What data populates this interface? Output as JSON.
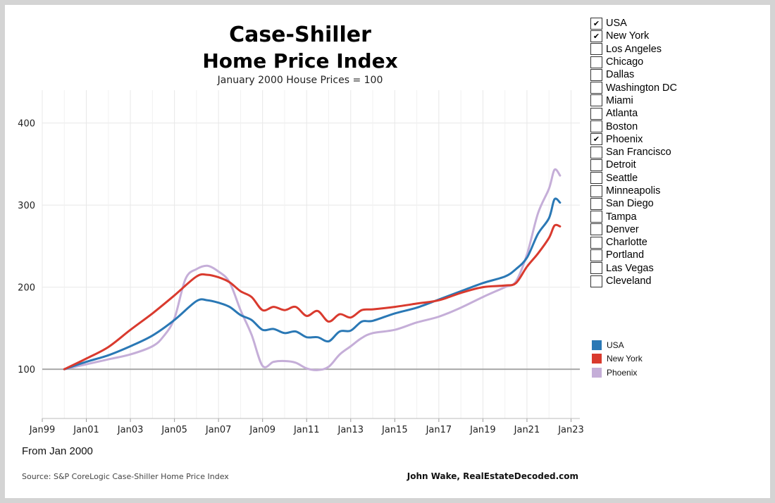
{
  "header": {
    "title_line1": "Case-Shiller",
    "title_line2": "Home Price Index",
    "subtitle": "January 2000 House Prices = 100"
  },
  "filter": {
    "items": [
      {
        "label": "USA",
        "checked": true
      },
      {
        "label": "New York",
        "checked": true
      },
      {
        "label": "Los Angeles",
        "checked": false
      },
      {
        "label": "Chicago",
        "checked": false
      },
      {
        "label": "Dallas",
        "checked": false
      },
      {
        "label": "Washington DC",
        "checked": false
      },
      {
        "label": "Miami",
        "checked": false
      },
      {
        "label": "Atlanta",
        "checked": false
      },
      {
        "label": "Boston",
        "checked": false
      },
      {
        "label": "Phoenix",
        "checked": true
      },
      {
        "label": "San Francisco",
        "checked": false
      },
      {
        "label": "Detroit",
        "checked": false
      },
      {
        "label": "Seattle",
        "checked": false
      },
      {
        "label": "Minneapolis",
        "checked": false
      },
      {
        "label": "San Diego",
        "checked": false
      },
      {
        "label": "Tampa",
        "checked": false
      },
      {
        "label": "Denver",
        "checked": false
      },
      {
        "label": "Charlotte",
        "checked": false
      },
      {
        "label": "Portland",
        "checked": false
      },
      {
        "label": "Las Vegas",
        "checked": false
      },
      {
        "label": "Cleveland",
        "checked": false
      }
    ]
  },
  "footer": {
    "note": "From Jan 2000",
    "source": "Source: S&P CoreLogic Case-Shiller Home Price Index",
    "credit": "John Wake, RealEstateDecoded.com"
  },
  "chart_data": {
    "type": "line",
    "x_ticks": [
      "Jan99",
      "Jan01",
      "Jan03",
      "Jan05",
      "Jan07",
      "Jan09",
      "Jan11",
      "Jan13",
      "Jan15",
      "Jan17",
      "Jan19",
      "Jan21",
      "Jan23"
    ],
    "y_ticks": [
      100,
      200,
      300,
      400
    ],
    "xlim": [
      1999.0,
      2023.4
    ],
    "ylim": [
      40,
      440
    ],
    "reference_line": 100,
    "grid": true,
    "legend_position": "right",
    "series": [
      {
        "name": "USA",
        "color": "#2a78b5",
        "x": [
          2000,
          2001,
          2002,
          2003,
          2004,
          2005,
          2006,
          2006.5,
          2007,
          2007.5,
          2008,
          2008.5,
          2009,
          2009.5,
          2010,
          2010.5,
          2011,
          2011.5,
          2012,
          2012.5,
          2013,
          2013.5,
          2014,
          2015,
          2016,
          2017,
          2018,
          2019,
          2020,
          2020.5,
          2021,
          2021.5,
          2022,
          2022.25,
          2022.5
        ],
        "y": [
          100,
          109,
          117,
          128,
          141,
          160,
          183,
          184,
          181,
          176,
          166,
          160,
          148,
          149,
          144,
          146,
          139,
          139,
          134,
          146,
          147,
          158,
          159,
          168,
          175,
          185,
          195,
          205,
          213,
          222,
          236,
          265,
          284,
          307,
          303
        ]
      },
      {
        "name": "New York",
        "color": "#d93a2e",
        "x": [
          2000,
          2001,
          2002,
          2003,
          2004,
          2005,
          2006,
          2006.5,
          2007,
          2007.5,
          2008,
          2008.5,
          2009,
          2009.5,
          2010,
          2010.5,
          2011,
          2011.5,
          2012,
          2012.5,
          2013,
          2013.5,
          2014,
          2015,
          2016,
          2017,
          2018,
          2019,
          2020,
          2020.5,
          2021,
          2021.5,
          2022,
          2022.25,
          2022.5
        ],
        "y": [
          100,
          113,
          127,
          148,
          168,
          190,
          213,
          215,
          212,
          206,
          195,
          188,
          172,
          176,
          172,
          176,
          165,
          171,
          158,
          167,
          163,
          172,
          173,
          176,
          180,
          184,
          193,
          200,
          202,
          205,
          225,
          241,
          260,
          275,
          274
        ]
      },
      {
        "name": "Phoenix",
        "color": "#c5aed8",
        "x": [
          2000,
          2001,
          2002,
          2003,
          2004,
          2004.5,
          2005,
          2005.5,
          2006,
          2006.5,
          2007,
          2007.5,
          2008,
          2008.5,
          2009,
          2009.5,
          2010,
          2010.5,
          2011,
          2011.5,
          2012,
          2012.5,
          2013,
          2013.5,
          2014,
          2015,
          2016,
          2017,
          2018,
          2019,
          2020,
          2020.5,
          2021,
          2021.5,
          2022,
          2022.25,
          2022.5
        ],
        "y": [
          100,
          106,
          112,
          118,
          128,
          140,
          162,
          210,
          222,
          226,
          219,
          206,
          172,
          142,
          104,
          109,
          110,
          108,
          101,
          99,
          103,
          118,
          128,
          138,
          144,
          148,
          157,
          164,
          175,
          188,
          200,
          207,
          240,
          290,
          320,
          343,
          336
        ]
      }
    ]
  }
}
